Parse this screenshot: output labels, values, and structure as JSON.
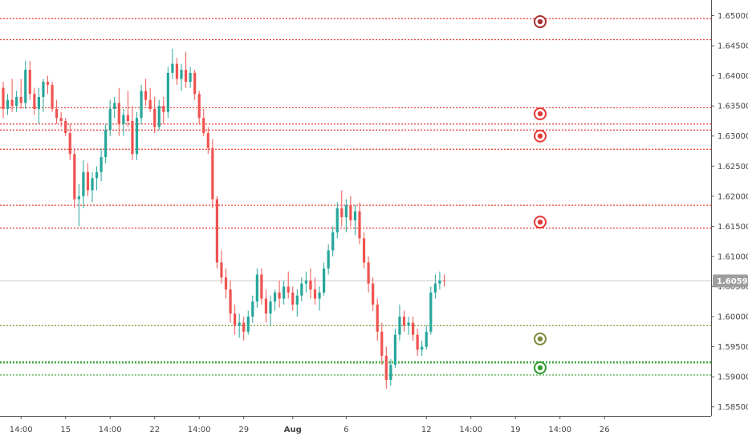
{
  "colors": {
    "up": "#26a69a",
    "down": "#ef5350",
    "resistance": "#e53935",
    "support_dark": "#6b8e23",
    "support": "#2e9d2e",
    "current_line": "#cccccc",
    "current_tag": "#9e9e9e",
    "axis": "#555555",
    "marker_resistance_dark": "#a83232",
    "marker_resistance": "#e53935",
    "marker_support_dark": "#7a8a3a",
    "marker_support": "#2e9d2e"
  },
  "current_price": "1.60594",
  "chart_data": {
    "type": "candlestick",
    "title": "",
    "xlabel": "",
    "ylabel": "",
    "ylim": [
      1.5835,
      1.6526
    ],
    "grid": false,
    "y_ticks": [
      "1.65000",
      "1.64500",
      "1.64000",
      "1.63500",
      "1.63000",
      "1.62500",
      "1.62000",
      "1.61500",
      "1.61000",
      "1.60500",
      "1.60000",
      "1.59500",
      "1.59000",
      "1.58500"
    ],
    "x_ticks": [
      {
        "label": "14:00",
        "bar": 4,
        "bold": false
      },
      {
        "label": "15",
        "bar": 14,
        "bold": false
      },
      {
        "label": "14:00",
        "bar": 24,
        "bold": false
      },
      {
        "label": "22",
        "bar": 34,
        "bold": false
      },
      {
        "label": "14:00",
        "bar": 44,
        "bold": false
      },
      {
        "label": "29",
        "bar": 54,
        "bold": false
      },
      {
        "label": "Aug",
        "bar": 65,
        "bold": true
      },
      {
        "label": "6",
        "bar": 77,
        "bold": false
      },
      {
        "label": "12",
        "bar": 95,
        "bold": false
      },
      {
        "label": "14:00",
        "bar": 105,
        "bold": false
      },
      {
        "label": "19",
        "bar": 115,
        "bold": false
      },
      {
        "label": "14:00",
        "bar": 125,
        "bold": false
      },
      {
        "label": "26",
        "bar": 135,
        "bold": false
      }
    ],
    "horizontal_levels": [
      {
        "price": 1.6495,
        "kind": "resistance"
      },
      {
        "price": 1.646,
        "kind": "resistance"
      },
      {
        "price": 1.6347,
        "kind": "resistance"
      },
      {
        "price": 1.632,
        "kind": "resistance"
      },
      {
        "price": 1.631,
        "kind": "resistance"
      },
      {
        "price": 1.6278,
        "kind": "resistance"
      },
      {
        "price": 1.6185,
        "kind": "resistance"
      },
      {
        "price": 1.6147,
        "kind": "resistance"
      },
      {
        "price": 1.5985,
        "kind": "support_dark"
      },
      {
        "price": 1.5925,
        "kind": "support"
      },
      {
        "price": 1.5923,
        "kind": "support"
      },
      {
        "price": 1.5903,
        "kind": "support"
      }
    ],
    "level_markers": [
      {
        "price": 1.649,
        "kind": "resistance_dark"
      },
      {
        "price": 1.6337,
        "kind": "resistance"
      },
      {
        "price": 1.63,
        "kind": "resistance"
      },
      {
        "price": 1.6157,
        "kind": "resistance"
      },
      {
        "price": 1.5963,
        "kind": "support_dark"
      },
      {
        "price": 1.5915,
        "kind": "support"
      }
    ],
    "candles": [
      [
        1.638,
        1.639,
        1.633,
        1.6345
      ],
      [
        1.6345,
        1.637,
        1.6335,
        1.636
      ],
      [
        1.636,
        1.6395,
        1.634,
        1.635
      ],
      [
        1.635,
        1.6375,
        1.634,
        1.6365
      ],
      [
        1.6365,
        1.6395,
        1.6345,
        1.6355
      ],
      [
        1.6355,
        1.6425,
        1.6345,
        1.641
      ],
      [
        1.641,
        1.6425,
        1.636,
        1.637
      ],
      [
        1.637,
        1.638,
        1.6335,
        1.6345
      ],
      [
        1.6345,
        1.638,
        1.632,
        1.6365
      ],
      [
        1.6365,
        1.6395,
        1.634,
        1.639
      ],
      [
        1.639,
        1.64,
        1.637,
        1.6385
      ],
      [
        1.6385,
        1.639,
        1.634,
        1.6345
      ],
      [
        1.6345,
        1.636,
        1.632,
        1.633
      ],
      [
        1.633,
        1.634,
        1.6315,
        1.6325
      ],
      [
        1.6325,
        1.633,
        1.63,
        1.6305
      ],
      [
        1.6305,
        1.632,
        1.626,
        1.627
      ],
      [
        1.627,
        1.628,
        1.618,
        1.6195
      ],
      [
        1.6195,
        1.622,
        1.615,
        1.62
      ],
      [
        1.62,
        1.626,
        1.618,
        1.624
      ],
      [
        1.624,
        1.6255,
        1.62,
        1.621
      ],
      [
        1.621,
        1.624,
        1.619,
        1.623
      ],
      [
        1.623,
        1.625,
        1.621,
        1.624
      ],
      [
        1.624,
        1.628,
        1.6225,
        1.6265
      ],
      [
        1.6265,
        1.632,
        1.6255,
        1.631
      ],
      [
        1.631,
        1.636,
        1.63,
        1.6345
      ],
      [
        1.6345,
        1.6365,
        1.633,
        1.6355
      ],
      [
        1.6355,
        1.638,
        1.63,
        1.632
      ],
      [
        1.632,
        1.6345,
        1.63,
        1.6335
      ],
      [
        1.6335,
        1.6375,
        1.6315,
        1.6325
      ],
      [
        1.6325,
        1.635,
        1.626,
        1.627
      ],
      [
        1.627,
        1.634,
        1.626,
        1.633
      ],
      [
        1.633,
        1.6385,
        1.632,
        1.6375
      ],
      [
        1.6375,
        1.6395,
        1.635,
        1.636
      ],
      [
        1.636,
        1.638,
        1.634,
        1.6345
      ],
      [
        1.6345,
        1.6365,
        1.6305,
        1.6315
      ],
      [
        1.6315,
        1.636,
        1.631,
        1.635
      ],
      [
        1.635,
        1.6365,
        1.632,
        1.634
      ],
      [
        1.634,
        1.6415,
        1.633,
        1.6405
      ],
      [
        1.6405,
        1.6445,
        1.6395,
        1.642
      ],
      [
        1.642,
        1.643,
        1.6385,
        1.6395
      ],
      [
        1.6395,
        1.642,
        1.6375,
        1.641
      ],
      [
        1.641,
        1.644,
        1.638,
        1.639
      ],
      [
        1.639,
        1.6415,
        1.638,
        1.6405
      ],
      [
        1.6405,
        1.641,
        1.636,
        1.637
      ],
      [
        1.637,
        1.6375,
        1.632,
        1.633
      ],
      [
        1.633,
        1.6345,
        1.63,
        1.6305
      ],
      [
        1.6305,
        1.6315,
        1.627,
        1.628
      ],
      [
        1.628,
        1.6295,
        1.618,
        1.6195
      ],
      [
        1.6195,
        1.62,
        1.608,
        1.609
      ],
      [
        1.609,
        1.611,
        1.6055,
        1.6065
      ],
      [
        1.6065,
        1.608,
        1.603,
        1.6045
      ],
      [
        1.6045,
        1.606,
        1.599,
        1.6005
      ],
      [
        1.6005,
        1.602,
        1.597,
        1.5985
      ],
      [
        1.5985,
        1.6005,
        1.5965,
        1.599
      ],
      [
        1.599,
        1.6,
        1.596,
        1.5975
      ],
      [
        1.5975,
        1.601,
        1.597,
        1.6
      ],
      [
        1.6,
        1.6035,
        1.599,
        1.6025
      ],
      [
        1.6025,
        1.608,
        1.6015,
        1.607
      ],
      [
        1.607,
        1.608,
        1.602,
        1.603
      ],
      [
        1.603,
        1.6045,
        1.599,
        1.6005
      ],
      [
        1.6005,
        1.6035,
        1.5985,
        1.6025
      ],
      [
        1.6025,
        1.6045,
        1.601,
        1.604
      ],
      [
        1.604,
        1.606,
        1.6015,
        1.603
      ],
      [
        1.603,
        1.606,
        1.602,
        1.605
      ],
      [
        1.605,
        1.6075,
        1.603,
        1.604
      ],
      [
        1.604,
        1.605,
        1.601,
        1.602
      ],
      [
        1.602,
        1.6045,
        1.6,
        1.6035
      ],
      [
        1.6035,
        1.6065,
        1.6025,
        1.6055
      ],
      [
        1.6055,
        1.6075,
        1.604,
        1.606
      ],
      [
        1.606,
        1.608,
        1.603,
        1.6045
      ],
      [
        1.6045,
        1.6065,
        1.602,
        1.603
      ],
      [
        1.603,
        1.605,
        1.601,
        1.604
      ],
      [
        1.604,
        1.609,
        1.6035,
        1.608
      ],
      [
        1.608,
        1.612,
        1.607,
        1.611
      ],
      [
        1.611,
        1.615,
        1.61,
        1.614
      ],
      [
        1.614,
        1.619,
        1.613,
        1.618
      ],
      [
        1.618,
        1.621,
        1.615,
        1.6165
      ],
      [
        1.6165,
        1.6195,
        1.614,
        1.6185
      ],
      [
        1.6185,
        1.62,
        1.615,
        1.616
      ],
      [
        1.616,
        1.6185,
        1.6135,
        1.6175
      ],
      [
        1.6175,
        1.619,
        1.612,
        1.613
      ],
      [
        1.613,
        1.614,
        1.608,
        1.609
      ],
      [
        1.609,
        1.61,
        1.604,
        1.6055
      ],
      [
        1.6055,
        1.6065,
        1.601,
        1.602
      ],
      [
        1.602,
        1.603,
        1.596,
        1.5975
      ],
      [
        1.5975,
        1.599,
        1.592,
        1.5935
      ],
      [
        1.5935,
        1.595,
        1.588,
        1.5895
      ],
      [
        1.5895,
        1.593,
        1.5885,
        1.592
      ],
      [
        1.592,
        1.598,
        1.5915,
        1.597
      ],
      [
        1.597,
        1.602,
        1.596,
        1.6
      ],
      [
        1.6,
        1.601,
        1.5975,
        1.5985
      ],
      [
        1.5985,
        1.6,
        1.597,
        1.599
      ],
      [
        1.599,
        1.6,
        1.596,
        1.597
      ],
      [
        1.597,
        1.598,
        1.5935,
        1.5945
      ],
      [
        1.5945,
        1.596,
        1.5935,
        1.595
      ],
      [
        1.595,
        1.5985,
        1.5945,
        1.5975
      ],
      [
        1.5975,
        1.605,
        1.597,
        1.604
      ],
      [
        1.604,
        1.607,
        1.603,
        1.6055
      ],
      [
        1.6055,
        1.6075,
        1.6045,
        1.606
      ],
      [
        1.606,
        1.607,
        1.605,
        1.6059
      ]
    ]
  }
}
